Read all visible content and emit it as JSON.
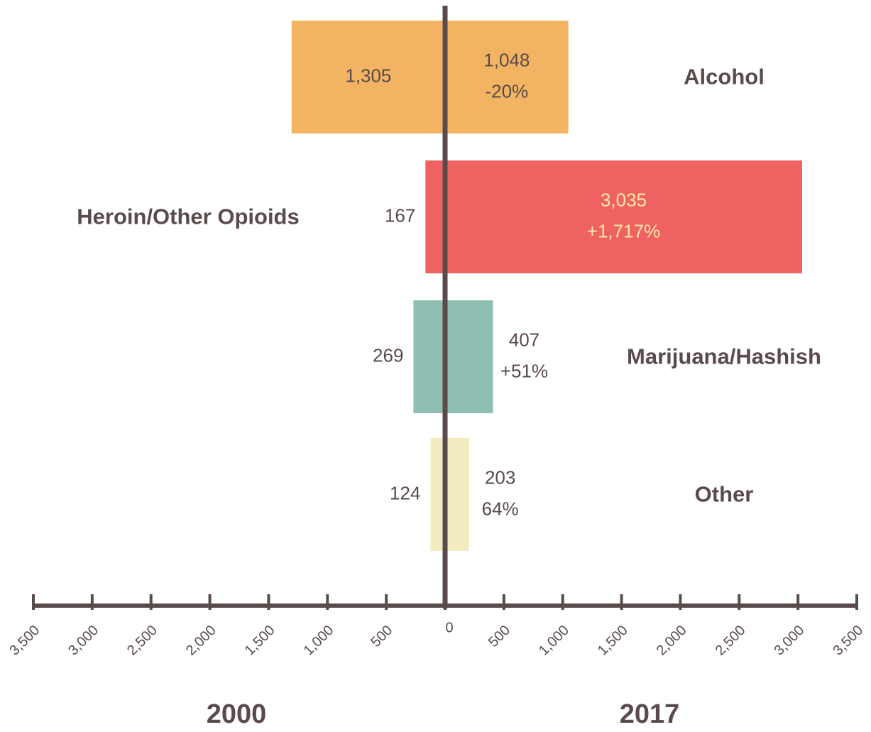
{
  "chart_data": {
    "type": "butterfly-bar",
    "categories": [
      "Alcohol",
      "Heroin/Other Opioids",
      "Marijuana/Hashish",
      "Other"
    ],
    "colors": [
      "#f2b462",
      "#ef6262",
      "#8fbfb2",
      "#f2ecc0"
    ],
    "label_colors": [
      "#5a4a4c",
      "#fbe9a6",
      "#5a4a4c",
      "#5a4a4c"
    ],
    "series": [
      {
        "name": "2000",
        "values": [
          1305,
          167,
          269,
          124
        ],
        "value_labels": [
          "1,305",
          "167",
          "269",
          "124"
        ]
      },
      {
        "name": "2017",
        "values": [
          1048,
          3035,
          407,
          203
        ],
        "value_labels": [
          "1,048",
          "3,035",
          "407",
          "203"
        ],
        "change_labels": [
          "-20%",
          "+1,717%",
          "+51%",
          "64%"
        ]
      }
    ],
    "xlim": [
      0,
      3500
    ],
    "xticks": [
      0,
      {
        "value": 500,
        "label": "500"
      },
      {
        "value": 1000,
        "label": "1,000"
      },
      {
        "value": 1500,
        "label": "1,500"
      },
      {
        "value": 2000,
        "label": "2,000"
      },
      {
        "value": 2500,
        "label": "2,500"
      },
      {
        "value": 3000,
        "label": "3,000"
      },
      {
        "value": 3500,
        "label": "3,500"
      }
    ]
  }
}
